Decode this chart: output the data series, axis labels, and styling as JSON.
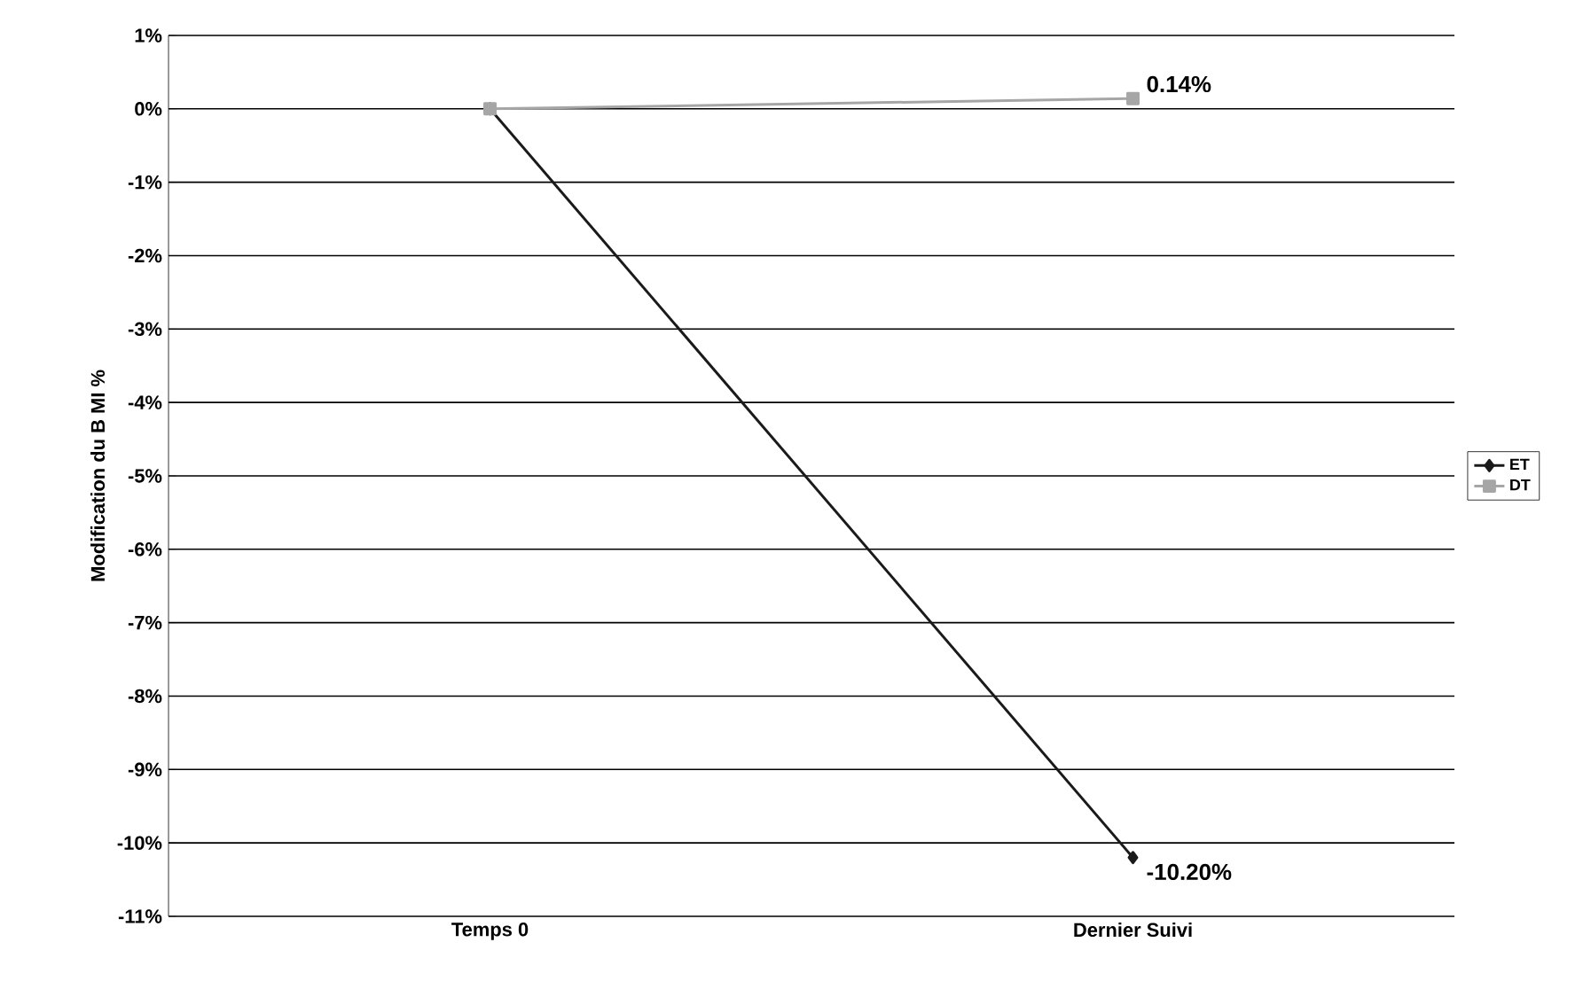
{
  "chart_data": {
    "type": "line",
    "ylabel": "Modification du B MI %",
    "categories": [
      "Temps 0",
      "Dernier Suivi"
    ],
    "series": [
      {
        "name": "ET",
        "color": "#1a1a1a",
        "marker": "diamond",
        "values": [
          0,
          -10.2
        ],
        "value_labels": [
          null,
          "-10.20%"
        ]
      },
      {
        "name": "DT",
        "color": "#a6a6a6",
        "marker": "square",
        "values": [
          0,
          0.14
        ],
        "value_labels": [
          null,
          "0.14%"
        ]
      }
    ],
    "ylim": [
      -11,
      1
    ],
    "yticks": [
      {
        "value": 1,
        "label": "1%"
      },
      {
        "value": 0,
        "label": "0%"
      },
      {
        "value": -1,
        "label": "-1%"
      },
      {
        "value": -2,
        "label": "-2%"
      },
      {
        "value": -3,
        "label": "-3%"
      },
      {
        "value": -4,
        "label": "-4%"
      },
      {
        "value": -5,
        "label": "-5%"
      },
      {
        "value": -6,
        "label": "-6%"
      },
      {
        "value": -7,
        "label": "-7%"
      },
      {
        "value": -8,
        "label": "-8%"
      },
      {
        "value": -9,
        "label": "-9%"
      },
      {
        "value": -10,
        "label": "-10%"
      },
      {
        "value": -11,
        "label": "-11%"
      }
    ],
    "grid": "y",
    "legend": "right"
  }
}
